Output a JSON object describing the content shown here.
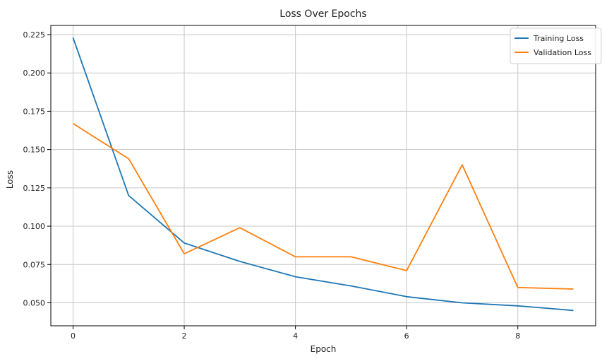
{
  "chart_data": {
    "type": "line",
    "title": "Loss Over Epochs",
    "xlabel": "Epoch",
    "ylabel": "Loss",
    "x": [
      0,
      1,
      2,
      3,
      4,
      5,
      6,
      7,
      8,
      9
    ],
    "xlim": [
      -0.4,
      9.4
    ],
    "ylim": [
      0.035,
      0.231
    ],
    "xticks": [
      0,
      2,
      4,
      6,
      8
    ],
    "xtick_labels": [
      "0",
      "2",
      "4",
      "6",
      "8"
    ],
    "yticks": [
      0.05,
      0.075,
      0.1,
      0.125,
      0.15,
      0.175,
      0.2,
      0.225
    ],
    "ytick_labels": [
      "0.050",
      "0.075",
      "0.100",
      "0.125",
      "0.150",
      "0.175",
      "0.200",
      "0.225"
    ],
    "grid": true,
    "legend_position": "top-right",
    "series": [
      {
        "name": "Training Loss",
        "color": "#1f77b4",
        "values": [
          0.223,
          0.12,
          0.089,
          0.077,
          0.067,
          0.061,
          0.054,
          0.05,
          0.048,
          0.045
        ]
      },
      {
        "name": "Validation Loss",
        "color": "#ff7f0e",
        "values": [
          0.167,
          0.144,
          0.082,
          0.099,
          0.08,
          0.08,
          0.071,
          0.14,
          0.06,
          0.059
        ]
      }
    ]
  }
}
